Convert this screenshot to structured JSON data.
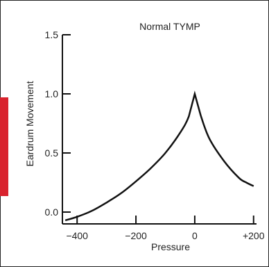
{
  "chart_data": {
    "type": "line",
    "title": "Normal TYMP",
    "xlabel": "Pressure",
    "ylabel": "Eardrum Movement",
    "xlim": [
      -450,
      210
    ],
    "ylim": [
      -0.1,
      1.5
    ],
    "x_ticks": [
      -400,
      -200,
      0,
      200
    ],
    "x_tick_labels": [
      "−400",
      "−200",
      "0",
      "+200"
    ],
    "y_ticks": [
      0.0,
      0.5,
      1.0,
      1.5
    ],
    "y_tick_labels": [
      "0.0",
      "0.5",
      "1.0",
      "1.5"
    ],
    "grid": false,
    "legend": "none",
    "line_color": "#111111",
    "accent_color": "#d9232e",
    "series": [
      {
        "x": [
          -440,
          -400,
          -350,
          -300,
          -250,
          -200,
          -150,
          -100,
          -50,
          -20,
          0,
          20,
          50,
          100,
          150,
          175,
          200
        ],
        "y": [
          -0.07,
          -0.04,
          0.01,
          0.08,
          0.16,
          0.26,
          0.37,
          0.5,
          0.67,
          0.81,
          1.0,
          0.82,
          0.62,
          0.43,
          0.29,
          0.25,
          0.22
        ]
      }
    ]
  }
}
